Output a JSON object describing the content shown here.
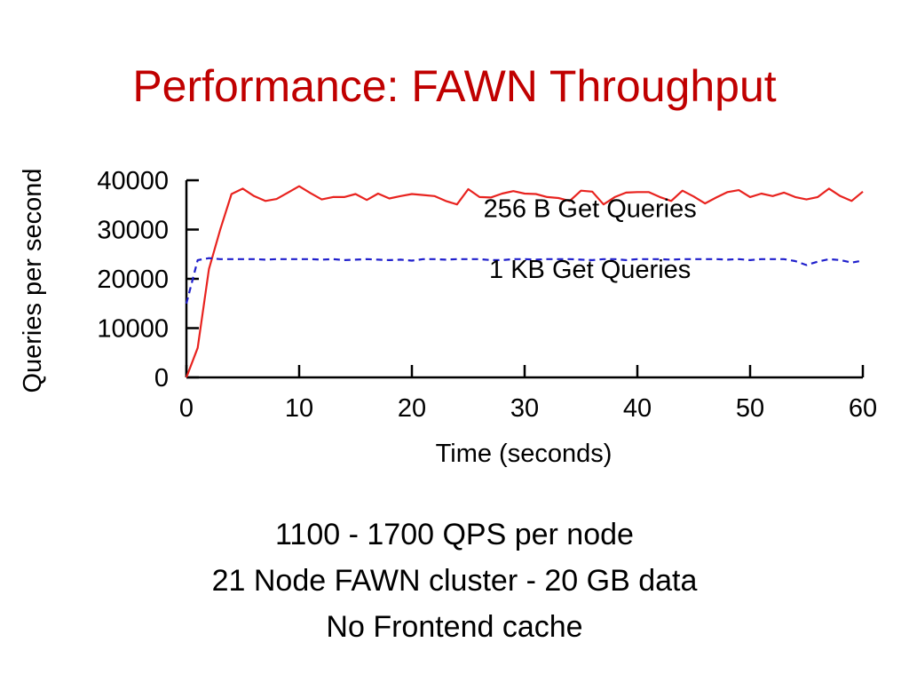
{
  "slide": {
    "title": "Performance: FAWN Throughput",
    "captions": [
      "1100 - 1700 QPS per node",
      "21 Node FAWN cluster - 20 GB data",
      "No Frontend cache"
    ]
  },
  "chart_data": {
    "type": "line",
    "xlabel": "Time (seconds)",
    "ylabel": "Queries per second",
    "xlim": [
      0,
      60
    ],
    "ylim": [
      0,
      40000
    ],
    "xticks": [
      0,
      10,
      20,
      30,
      40,
      50,
      60
    ],
    "yticks": [
      0,
      10000,
      20000,
      30000,
      40000
    ],
    "grid": false,
    "legend": "none",
    "series": [
      {
        "name": "256 B Get Queries",
        "color": "#e8231f",
        "style": "solid",
        "x": [
          0,
          1,
          2,
          3,
          4,
          5,
          6,
          7,
          8,
          9,
          10,
          11,
          12,
          13,
          14,
          15,
          16,
          17,
          18,
          19,
          20,
          21,
          22,
          23,
          24,
          25,
          26,
          27,
          28,
          29,
          30,
          31,
          32,
          33,
          34,
          35,
          36,
          37,
          38,
          39,
          40,
          41,
          42,
          43,
          44,
          45,
          46,
          47,
          48,
          49,
          50,
          51,
          52,
          53,
          54,
          55,
          56,
          57,
          58,
          59,
          60
        ],
        "values": [
          0,
          6000,
          22000,
          30000,
          37200,
          38300,
          36800,
          35800,
          36200,
          37500,
          38800,
          37400,
          36100,
          36600,
          36600,
          37200,
          36000,
          37300,
          36300,
          36800,
          37200,
          37000,
          36800,
          35800,
          35100,
          38200,
          36600,
          36500,
          37300,
          37800,
          37300,
          37200,
          36600,
          36400,
          35800,
          37900,
          37700,
          35100,
          36600,
          37500,
          37600,
          37600,
          36600,
          35800,
          37900,
          36700,
          35300,
          36500,
          37600,
          38000,
          36600,
          37300,
          36800,
          37500,
          36600,
          36100,
          36600,
          38300,
          36800,
          35800,
          37700
        ]
      },
      {
        "name": "1 KB Get Queries",
        "color": "#1f1fcc",
        "style": "dashed",
        "x": [
          0,
          1,
          2,
          3,
          4,
          5,
          6,
          7,
          8,
          9,
          10,
          11,
          12,
          13,
          14,
          15,
          16,
          17,
          18,
          19,
          20,
          21,
          22,
          23,
          24,
          25,
          26,
          27,
          28,
          29,
          30,
          31,
          32,
          33,
          34,
          35,
          36,
          37,
          38,
          39,
          40,
          41,
          42,
          43,
          44,
          45,
          46,
          47,
          48,
          49,
          50,
          51,
          52,
          53,
          54,
          55,
          56,
          57,
          58,
          59,
          60
        ],
        "values": [
          15000,
          23800,
          24200,
          24000,
          24000,
          24000,
          24000,
          23900,
          24000,
          24000,
          24000,
          24000,
          23900,
          24000,
          23800,
          23900,
          24000,
          23900,
          23800,
          23900,
          23700,
          24000,
          24000,
          23900,
          24000,
          24000,
          24000,
          23800,
          23800,
          24000,
          24000,
          23900,
          24000,
          24000,
          24000,
          23900,
          23800,
          24000,
          24000,
          23800,
          24000,
          24000,
          24000,
          23900,
          24000,
          24000,
          24000,
          24000,
          23900,
          24000,
          23800,
          24000,
          24000,
          24000,
          23600,
          22800,
          23500,
          24000,
          23800,
          23300,
          23700
        ]
      }
    ],
    "annotations": [
      {
        "text": "256 B Get Queries",
        "x": 35.8,
        "y": 32500
      },
      {
        "text": "1 KB Get Queries",
        "x": 35.8,
        "y": 20200
      }
    ]
  }
}
